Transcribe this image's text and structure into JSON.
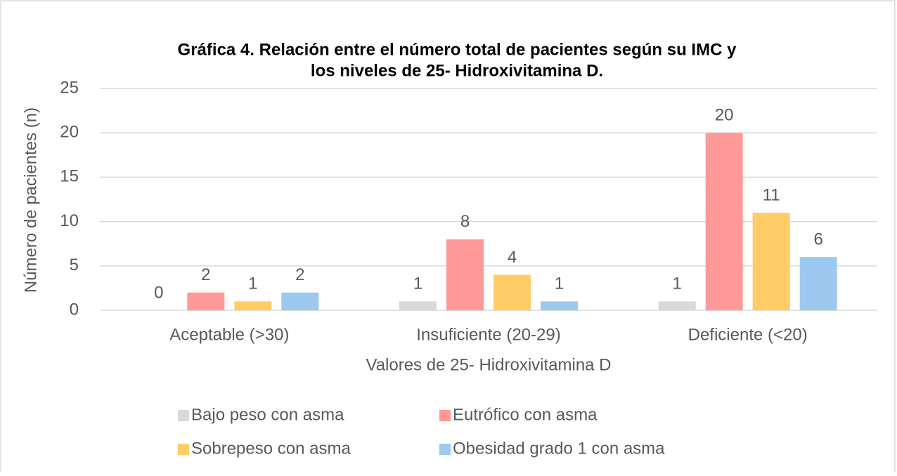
{
  "chart_data": {
    "type": "bar",
    "title": [
      "Gráfica 4.  Relación entre el número total de pacientes según su IMC y",
      "los niveles de 25- Hidroxivitamina D."
    ],
    "x_label": "Valores de 25- Hidroxivitamina D",
    "y_label": "Número de pacientes (n)",
    "categories": [
      "Aceptable (>30)",
      "Insuficiente (20-29)",
      "Deficiente (<20)"
    ],
    "series": [
      {
        "name": "Bajo peso con asma",
        "color": "#d9d9d9",
        "values": [
          0,
          1,
          1
        ]
      },
      {
        "name": "Eutrófico con asma",
        "color": "#ff9999",
        "values": [
          2,
          8,
          20
        ]
      },
      {
        "name": "Sobrepeso con asma",
        "color": "#ffcc66",
        "values": [
          1,
          4,
          11
        ]
      },
      {
        "name": "Obesidad grado 1 con asma",
        "color": "#9dc8f0",
        "values": [
          2,
          1,
          6
        ]
      }
    ],
    "ylim": [
      0,
      25
    ],
    "yticks": [
      0,
      5,
      10,
      15,
      20,
      25
    ],
    "grid": true,
    "legend": "bottom"
  }
}
